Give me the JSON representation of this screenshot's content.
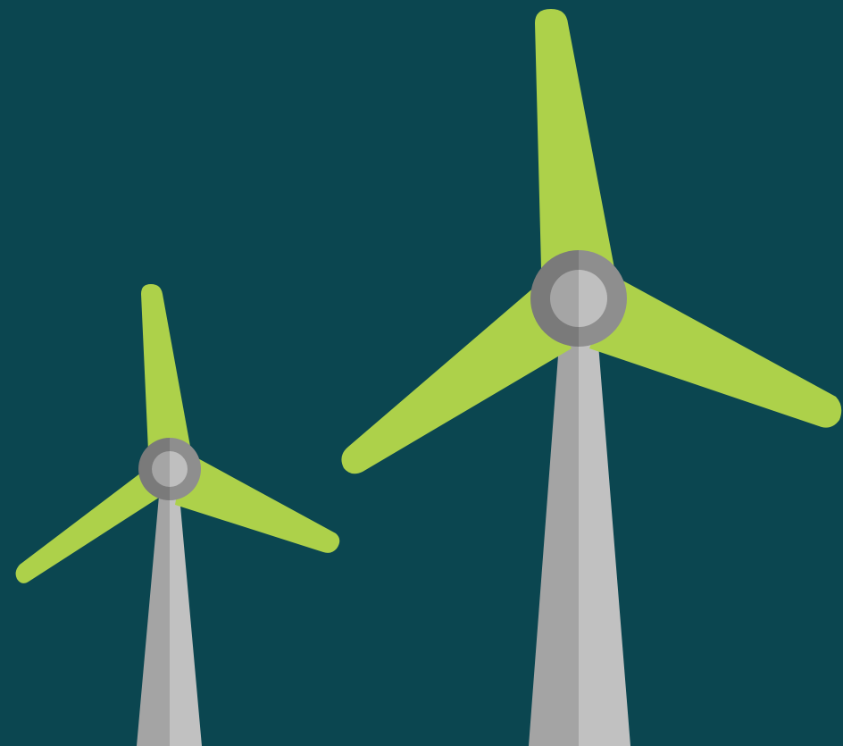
{
  "scene": {
    "background_color": "#0B4650",
    "blade_color": "#ADD14A",
    "tower_light_color": "#C1C1C1",
    "tower_shadow_color": "#A4A4A4",
    "hub_outer_light": "#8E8E8E",
    "hub_outer_shadow": "#7A7A7A",
    "hub_inner_light": "#BFBFBF",
    "hub_inner_shadow": "#A5A5A5",
    "turbines": [
      {
        "name": "small-wind-turbine-icon"
      },
      {
        "name": "large-wind-turbine-icon"
      }
    ]
  }
}
